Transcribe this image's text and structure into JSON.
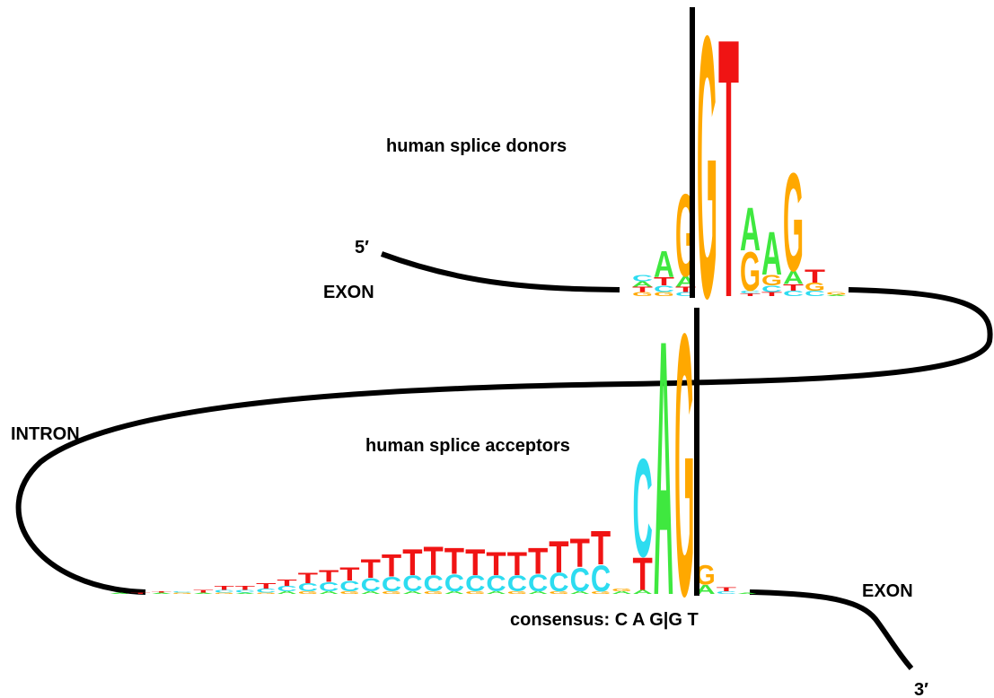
{
  "labels": {
    "five_prime": "5′",
    "three_prime": "3′",
    "exon_left": "EXON",
    "exon_right": "EXON",
    "intron": "INTRON",
    "donor_title": "human splice donors",
    "acceptor_title": "human splice acceptors",
    "consensus": "consensus: C A G|G T"
  },
  "letter_colors": {
    "A": "#3fe83f",
    "C": "#2ddcf0",
    "G": "#ffa800",
    "T": "#f01414"
  },
  "donor_logo": {
    "columns": [
      [
        [
          "G",
          0.03
        ],
        [
          "T",
          0.04
        ],
        [
          "A",
          0.04
        ],
        [
          "C",
          0.05
        ]
      ],
      [
        [
          "G",
          0.03
        ],
        [
          "C",
          0.05
        ],
        [
          "T",
          0.06
        ],
        [
          "A",
          0.2
        ]
      ],
      [
        [
          "C",
          0.03
        ],
        [
          "T",
          0.04
        ],
        [
          "A",
          0.08
        ],
        [
          "G",
          0.63
        ]
      ],
      [
        [
          "G",
          2.0
        ]
      ],
      [
        [
          "T",
          1.98
        ]
      ],
      [
        [
          "T",
          0.02
        ],
        [
          "C",
          0.02
        ],
        [
          "G",
          0.3
        ],
        [
          "A",
          0.33
        ]
      ],
      [
        [
          "T",
          0.03
        ],
        [
          "C",
          0.05
        ],
        [
          "G",
          0.08
        ],
        [
          "A",
          0.33
        ]
      ],
      [
        [
          "C",
          0.04
        ],
        [
          "T",
          0.05
        ],
        [
          "A",
          0.1
        ],
        [
          "G",
          0.75
        ]
      ],
      [
        [
          "C",
          0.04
        ],
        [
          "G",
          0.06
        ],
        [
          "T",
          0.1
        ]
      ],
      [
        [
          "A",
          0.01
        ],
        [
          "G",
          0.02
        ]
      ]
    ]
  },
  "acceptor_logo": {
    "columns": [
      [
        [
          "A",
          0.01
        ]
      ],
      [
        [
          "T",
          0.01
        ]
      ],
      [
        [
          "A",
          0.01
        ],
        [
          "T",
          0.01
        ]
      ],
      [
        [
          "G",
          0.01
        ],
        [
          "C",
          0.01
        ]
      ],
      [
        [
          "A",
          0.01
        ],
        [
          "T",
          0.02
        ]
      ],
      [
        [
          "G",
          0.01
        ],
        [
          "C",
          0.02
        ],
        [
          "T",
          0.03
        ]
      ],
      [
        [
          "A",
          0.01
        ],
        [
          "C",
          0.02
        ],
        [
          "T",
          0.03
        ]
      ],
      [
        [
          "G",
          0.01
        ],
        [
          "C",
          0.03
        ],
        [
          "T",
          0.04
        ]
      ],
      [
        [
          "A",
          0.02
        ],
        [
          "C",
          0.04
        ],
        [
          "T",
          0.05
        ]
      ],
      [
        [
          "G",
          0.02
        ],
        [
          "C",
          0.06
        ],
        [
          "T",
          0.08
        ]
      ],
      [
        [
          "A",
          0.02
        ],
        [
          "C",
          0.07
        ],
        [
          "T",
          0.09
        ]
      ],
      [
        [
          "G",
          0.02
        ],
        [
          "C",
          0.08
        ],
        [
          "T",
          0.1
        ]
      ],
      [
        [
          "A",
          0.02
        ],
        [
          "C",
          0.1
        ],
        [
          "T",
          0.14
        ]
      ],
      [
        [
          "G",
          0.02
        ],
        [
          "C",
          0.11
        ],
        [
          "T",
          0.17
        ]
      ],
      [
        [
          "A",
          0.02
        ],
        [
          "C",
          0.12
        ],
        [
          "T",
          0.2
        ]
      ],
      [
        [
          "G",
          0.02
        ],
        [
          "C",
          0.12
        ],
        [
          "T",
          0.22
        ]
      ],
      [
        [
          "A",
          0.02
        ],
        [
          "C",
          0.13
        ],
        [
          "T",
          0.2
        ]
      ],
      [
        [
          "G",
          0.02
        ],
        [
          "C",
          0.12
        ],
        [
          "T",
          0.2
        ]
      ],
      [
        [
          "A",
          0.02
        ],
        [
          "C",
          0.12
        ],
        [
          "T",
          0.18
        ]
      ],
      [
        [
          "G",
          0.02
        ],
        [
          "C",
          0.12
        ],
        [
          "T",
          0.18
        ]
      ],
      [
        [
          "A",
          0.02
        ],
        [
          "C",
          0.13
        ],
        [
          "T",
          0.2
        ]
      ],
      [
        [
          "G",
          0.02
        ],
        [
          "C",
          0.14
        ],
        [
          "T",
          0.24
        ]
      ],
      [
        [
          "A",
          0.02
        ],
        [
          "C",
          0.18
        ],
        [
          "T",
          0.22
        ]
      ],
      [
        [
          "G",
          0.02
        ],
        [
          "C",
          0.2
        ],
        [
          "T",
          0.26
        ]
      ],
      [
        [
          "A",
          0.02
        ],
        [
          "G",
          0.02
        ]
      ],
      [
        [
          "A",
          0.03
        ],
        [
          "T",
          0.25
        ],
        [
          "C",
          0.75
        ]
      ],
      [
        [
          "A",
          1.95
        ]
      ],
      [
        [
          "G",
          2.0
        ]
      ],
      [
        [
          "A",
          0.07
        ],
        [
          "G",
          0.15
        ]
      ],
      [
        [
          "C",
          0.02
        ],
        [
          "T",
          0.03
        ]
      ],
      [
        [
          "A",
          0.01
        ]
      ]
    ]
  }
}
